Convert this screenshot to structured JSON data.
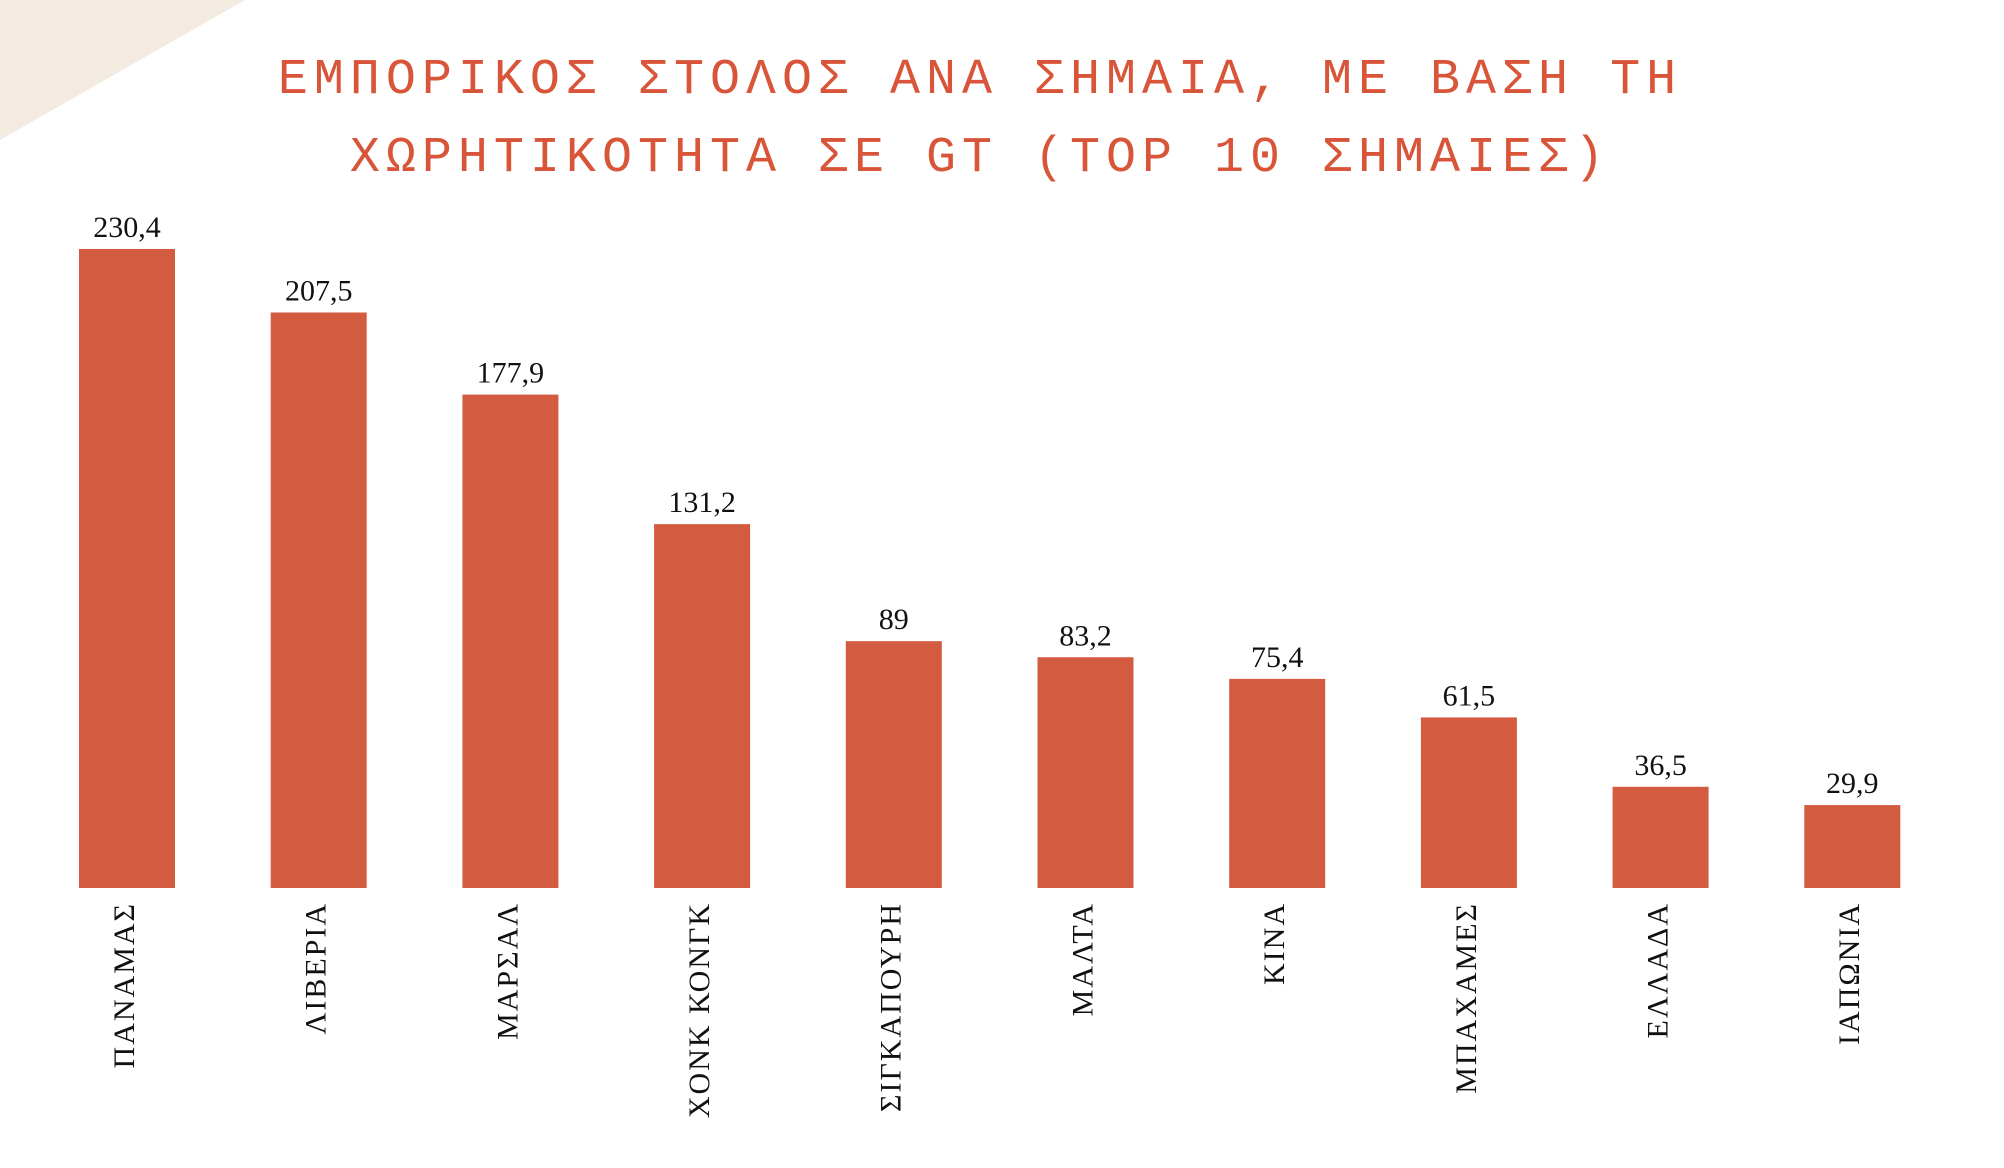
{
  "chart_data": {
    "type": "bar",
    "title": "ΕΜΠΟΡΙΚΟΣ ΣΤΟΛΟΣ ΑΝΑ ΣΗΜΑΙΑ, ΜΕ ΒΑΣΗ ΤΗ ΧΩΡΗΤΙΚΟΤΗΤΑ ΣΕ GT (TOP 10 ΣΗΜΑΙΕΣ)",
    "categories": [
      "ΠΑΝΑΜΑΣ",
      "ΛΙΒΕΡΙΑ",
      "ΜΑΡΣΑΛ",
      "ΧΟΝΚ ΚΟΝΓΚ",
      "ΣΙΓΚΑΠΟΥΡΗ",
      "ΜΑΛΤΑ",
      "ΚΙΝΑ",
      "ΜΠΑΧΑΜΕΣ",
      "ΕΛΛΑΔΑ",
      "ΙΑΠΩΝΙΑ"
    ],
    "values": [
      230.4,
      207.5,
      177.9,
      131.2,
      89,
      83.2,
      75.4,
      61.5,
      36.5,
      29.9
    ],
    "value_labels": [
      "230,4",
      "207,5",
      "177,9",
      "131,2",
      "89",
      "83,2",
      "75,4",
      "61,5",
      "36,5",
      "29,9"
    ],
    "color": "#d35b40"
  }
}
